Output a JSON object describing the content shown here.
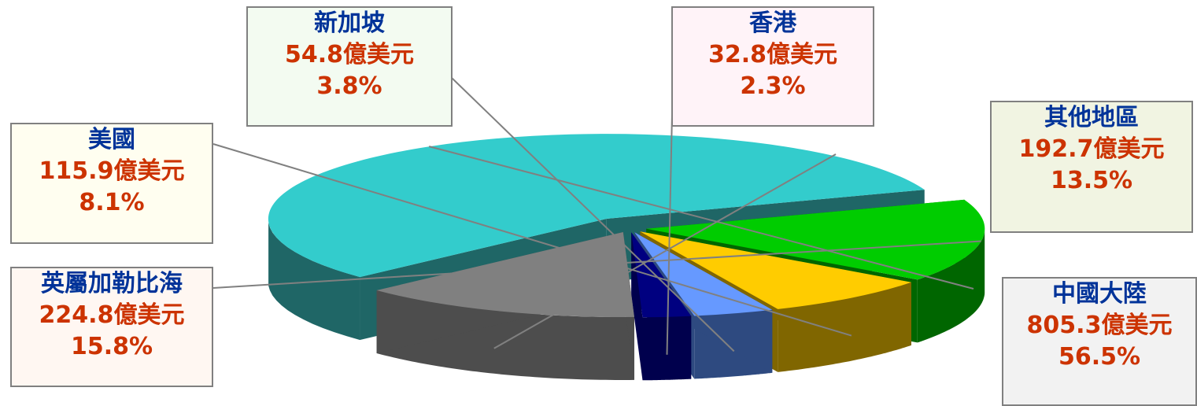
{
  "chart_data": {
    "type": "pie",
    "unit": "億美元",
    "slices": [
      {
        "label": "中國大陸",
        "value": 805.3,
        "value_text": "805.3億美元",
        "percent": 56.5,
        "percent_text": "56.5%",
        "color": "#33CCCC",
        "side_color": "#1F6666",
        "box_bg": "#F2F2F2"
      },
      {
        "label": "其他地區",
        "value": 192.7,
        "value_text": "192.7億美元",
        "percent": 13.5,
        "percent_text": "13.5%",
        "color": "#808080",
        "side_color": "#4D4D4D",
        "box_bg": "#F1F4E2"
      },
      {
        "label": "香港",
        "value": 32.8,
        "value_text": "32.8億美元",
        "percent": 2.3,
        "percent_text": "2.3%",
        "color": "#000080",
        "side_color": "#00004D",
        "box_bg": "#FFF3F8"
      },
      {
        "label": "新加坡",
        "value": 54.8,
        "value_text": "54.8億美元",
        "percent": 3.8,
        "percent_text": "3.8%",
        "color": "#6699FF",
        "side_color": "#2E4A80",
        "box_bg": "#F3FBF1"
      },
      {
        "label": "美國",
        "value": 115.9,
        "value_text": "115.9億美元",
        "percent": 8.1,
        "percent_text": "8.1%",
        "color": "#FFCC00",
        "side_color": "#806600",
        "box_bg": "#FFFEF0"
      },
      {
        "label": "英屬加勒比海",
        "value": 224.8,
        "value_text": "224.8億美元",
        "percent": 15.8,
        "percent_text": "15.8%",
        "color": "#00CC00",
        "side_color": "#006600",
        "box_bg": "#FFF7F2"
      }
    ],
    "label_color": "#003399",
    "value_color": "#CC3300"
  }
}
